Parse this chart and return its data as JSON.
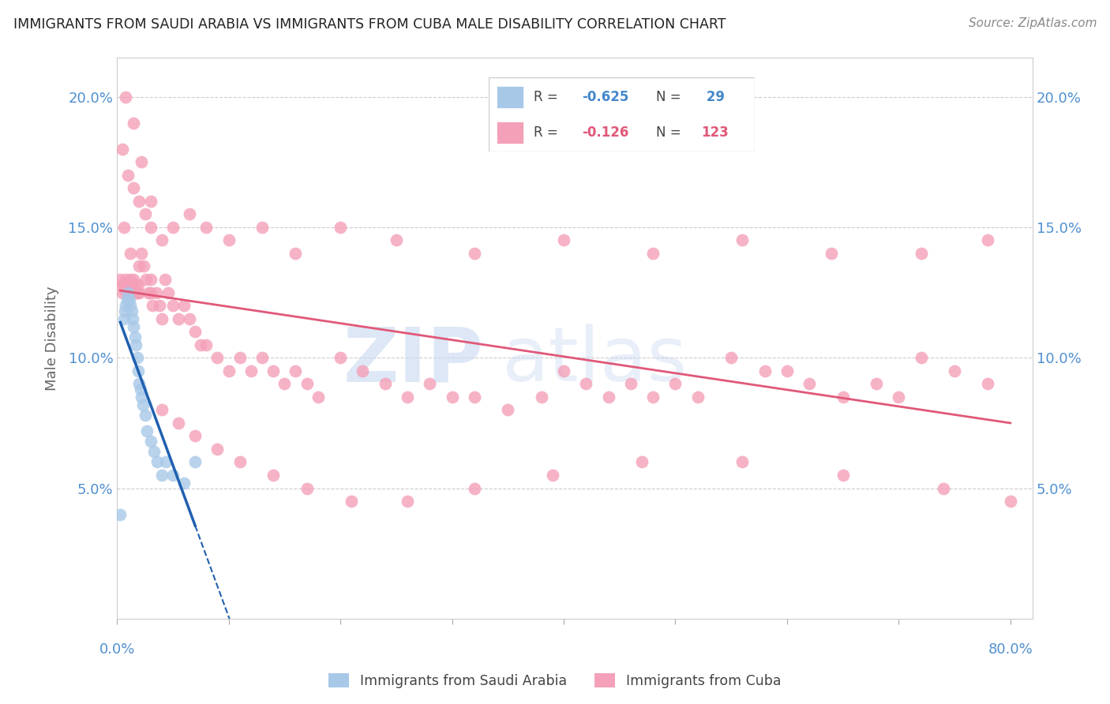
{
  "title": "IMMIGRANTS FROM SAUDI ARABIA VS IMMIGRANTS FROM CUBA MALE DISABILITY CORRELATION CHART",
  "source": "Source: ZipAtlas.com",
  "ylabel": "Male Disability",
  "yticks": [
    0.0,
    0.05,
    0.1,
    0.15,
    0.2
  ],
  "ytick_labels": [
    "",
    "5.0%",
    "10.0%",
    "15.0%",
    "20.0%"
  ],
  "xlim": [
    0.0,
    0.82
  ],
  "ylim": [
    0.0,
    0.215
  ],
  "saudi_color": "#a8c8e8",
  "cuba_color": "#f4a0b8",
  "saudi_line_color": "#2060b0",
  "cuba_line_color": "#e05878",
  "axis_label_color": "#5090d0",
  "watermark_color": "#c8d8f0",
  "saudi_x": [
    0.003,
    0.006,
    0.007,
    0.008,
    0.009,
    0.01,
    0.011,
    0.012,
    0.013,
    0.014,
    0.015,
    0.016,
    0.017,
    0.018,
    0.019,
    0.02,
    0.021,
    0.022,
    0.023,
    0.025,
    0.027,
    0.03,
    0.033,
    0.036,
    0.04,
    0.044,
    0.05,
    0.06,
    0.07
  ],
  "saudi_y": [
    0.04,
    0.115,
    0.118,
    0.12,
    0.122,
    0.125,
    0.122,
    0.12,
    0.118,
    0.115,
    0.112,
    0.108,
    0.105,
    0.1,
    0.095,
    0.09,
    0.088,
    0.085,
    0.082,
    0.078,
    0.072,
    0.068,
    0.064,
    0.06,
    0.055,
    0.06,
    0.055,
    0.052,
    0.06
  ],
  "cuba_x": [
    0.003,
    0.004,
    0.005,
    0.006,
    0.007,
    0.008,
    0.009,
    0.01,
    0.011,
    0.012,
    0.013,
    0.014,
    0.015,
    0.016,
    0.017,
    0.018,
    0.019,
    0.02,
    0.022,
    0.024,
    0.026,
    0.028,
    0.03,
    0.032,
    0.035,
    0.038,
    0.04,
    0.043,
    0.046,
    0.05,
    0.055,
    0.06,
    0.065,
    0.07,
    0.075,
    0.08,
    0.09,
    0.1,
    0.11,
    0.12,
    0.13,
    0.14,
    0.15,
    0.16,
    0.17,
    0.18,
    0.2,
    0.22,
    0.24,
    0.26,
    0.28,
    0.3,
    0.32,
    0.35,
    0.38,
    0.4,
    0.42,
    0.44,
    0.46,
    0.48,
    0.5,
    0.52,
    0.55,
    0.58,
    0.6,
    0.62,
    0.65,
    0.68,
    0.7,
    0.72,
    0.75,
    0.78,
    0.005,
    0.01,
    0.015,
    0.02,
    0.025,
    0.03,
    0.04,
    0.05,
    0.065,
    0.08,
    0.1,
    0.13,
    0.16,
    0.2,
    0.25,
    0.32,
    0.4,
    0.48,
    0.56,
    0.64,
    0.72,
    0.78,
    0.008,
    0.015,
    0.022,
    0.03,
    0.04,
    0.055,
    0.07,
    0.09,
    0.11,
    0.14,
    0.17,
    0.21,
    0.26,
    0.32,
    0.39,
    0.47,
    0.56,
    0.65,
    0.74,
    0.8,
    0.006,
    0.012,
    0.02,
    0.03
  ],
  "cuba_y": [
    0.13,
    0.128,
    0.125,
    0.128,
    0.126,
    0.13,
    0.128,
    0.125,
    0.128,
    0.13,
    0.128,
    0.125,
    0.13,
    0.125,
    0.128,
    0.125,
    0.128,
    0.125,
    0.14,
    0.135,
    0.13,
    0.125,
    0.125,
    0.12,
    0.125,
    0.12,
    0.115,
    0.13,
    0.125,
    0.12,
    0.115,
    0.12,
    0.115,
    0.11,
    0.105,
    0.105,
    0.1,
    0.095,
    0.1,
    0.095,
    0.1,
    0.095,
    0.09,
    0.095,
    0.09,
    0.085,
    0.1,
    0.095,
    0.09,
    0.085,
    0.09,
    0.085,
    0.085,
    0.08,
    0.085,
    0.095,
    0.09,
    0.085,
    0.09,
    0.085,
    0.09,
    0.085,
    0.1,
    0.095,
    0.095,
    0.09,
    0.085,
    0.09,
    0.085,
    0.1,
    0.095,
    0.09,
    0.18,
    0.17,
    0.165,
    0.16,
    0.155,
    0.15,
    0.145,
    0.15,
    0.155,
    0.15,
    0.145,
    0.15,
    0.14,
    0.15,
    0.145,
    0.14,
    0.145,
    0.14,
    0.145,
    0.14,
    0.14,
    0.145,
    0.2,
    0.19,
    0.175,
    0.16,
    0.08,
    0.075,
    0.07,
    0.065,
    0.06,
    0.055,
    0.05,
    0.045,
    0.045,
    0.05,
    0.055,
    0.06,
    0.06,
    0.055,
    0.05,
    0.045,
    0.15,
    0.14,
    0.135,
    0.13
  ]
}
